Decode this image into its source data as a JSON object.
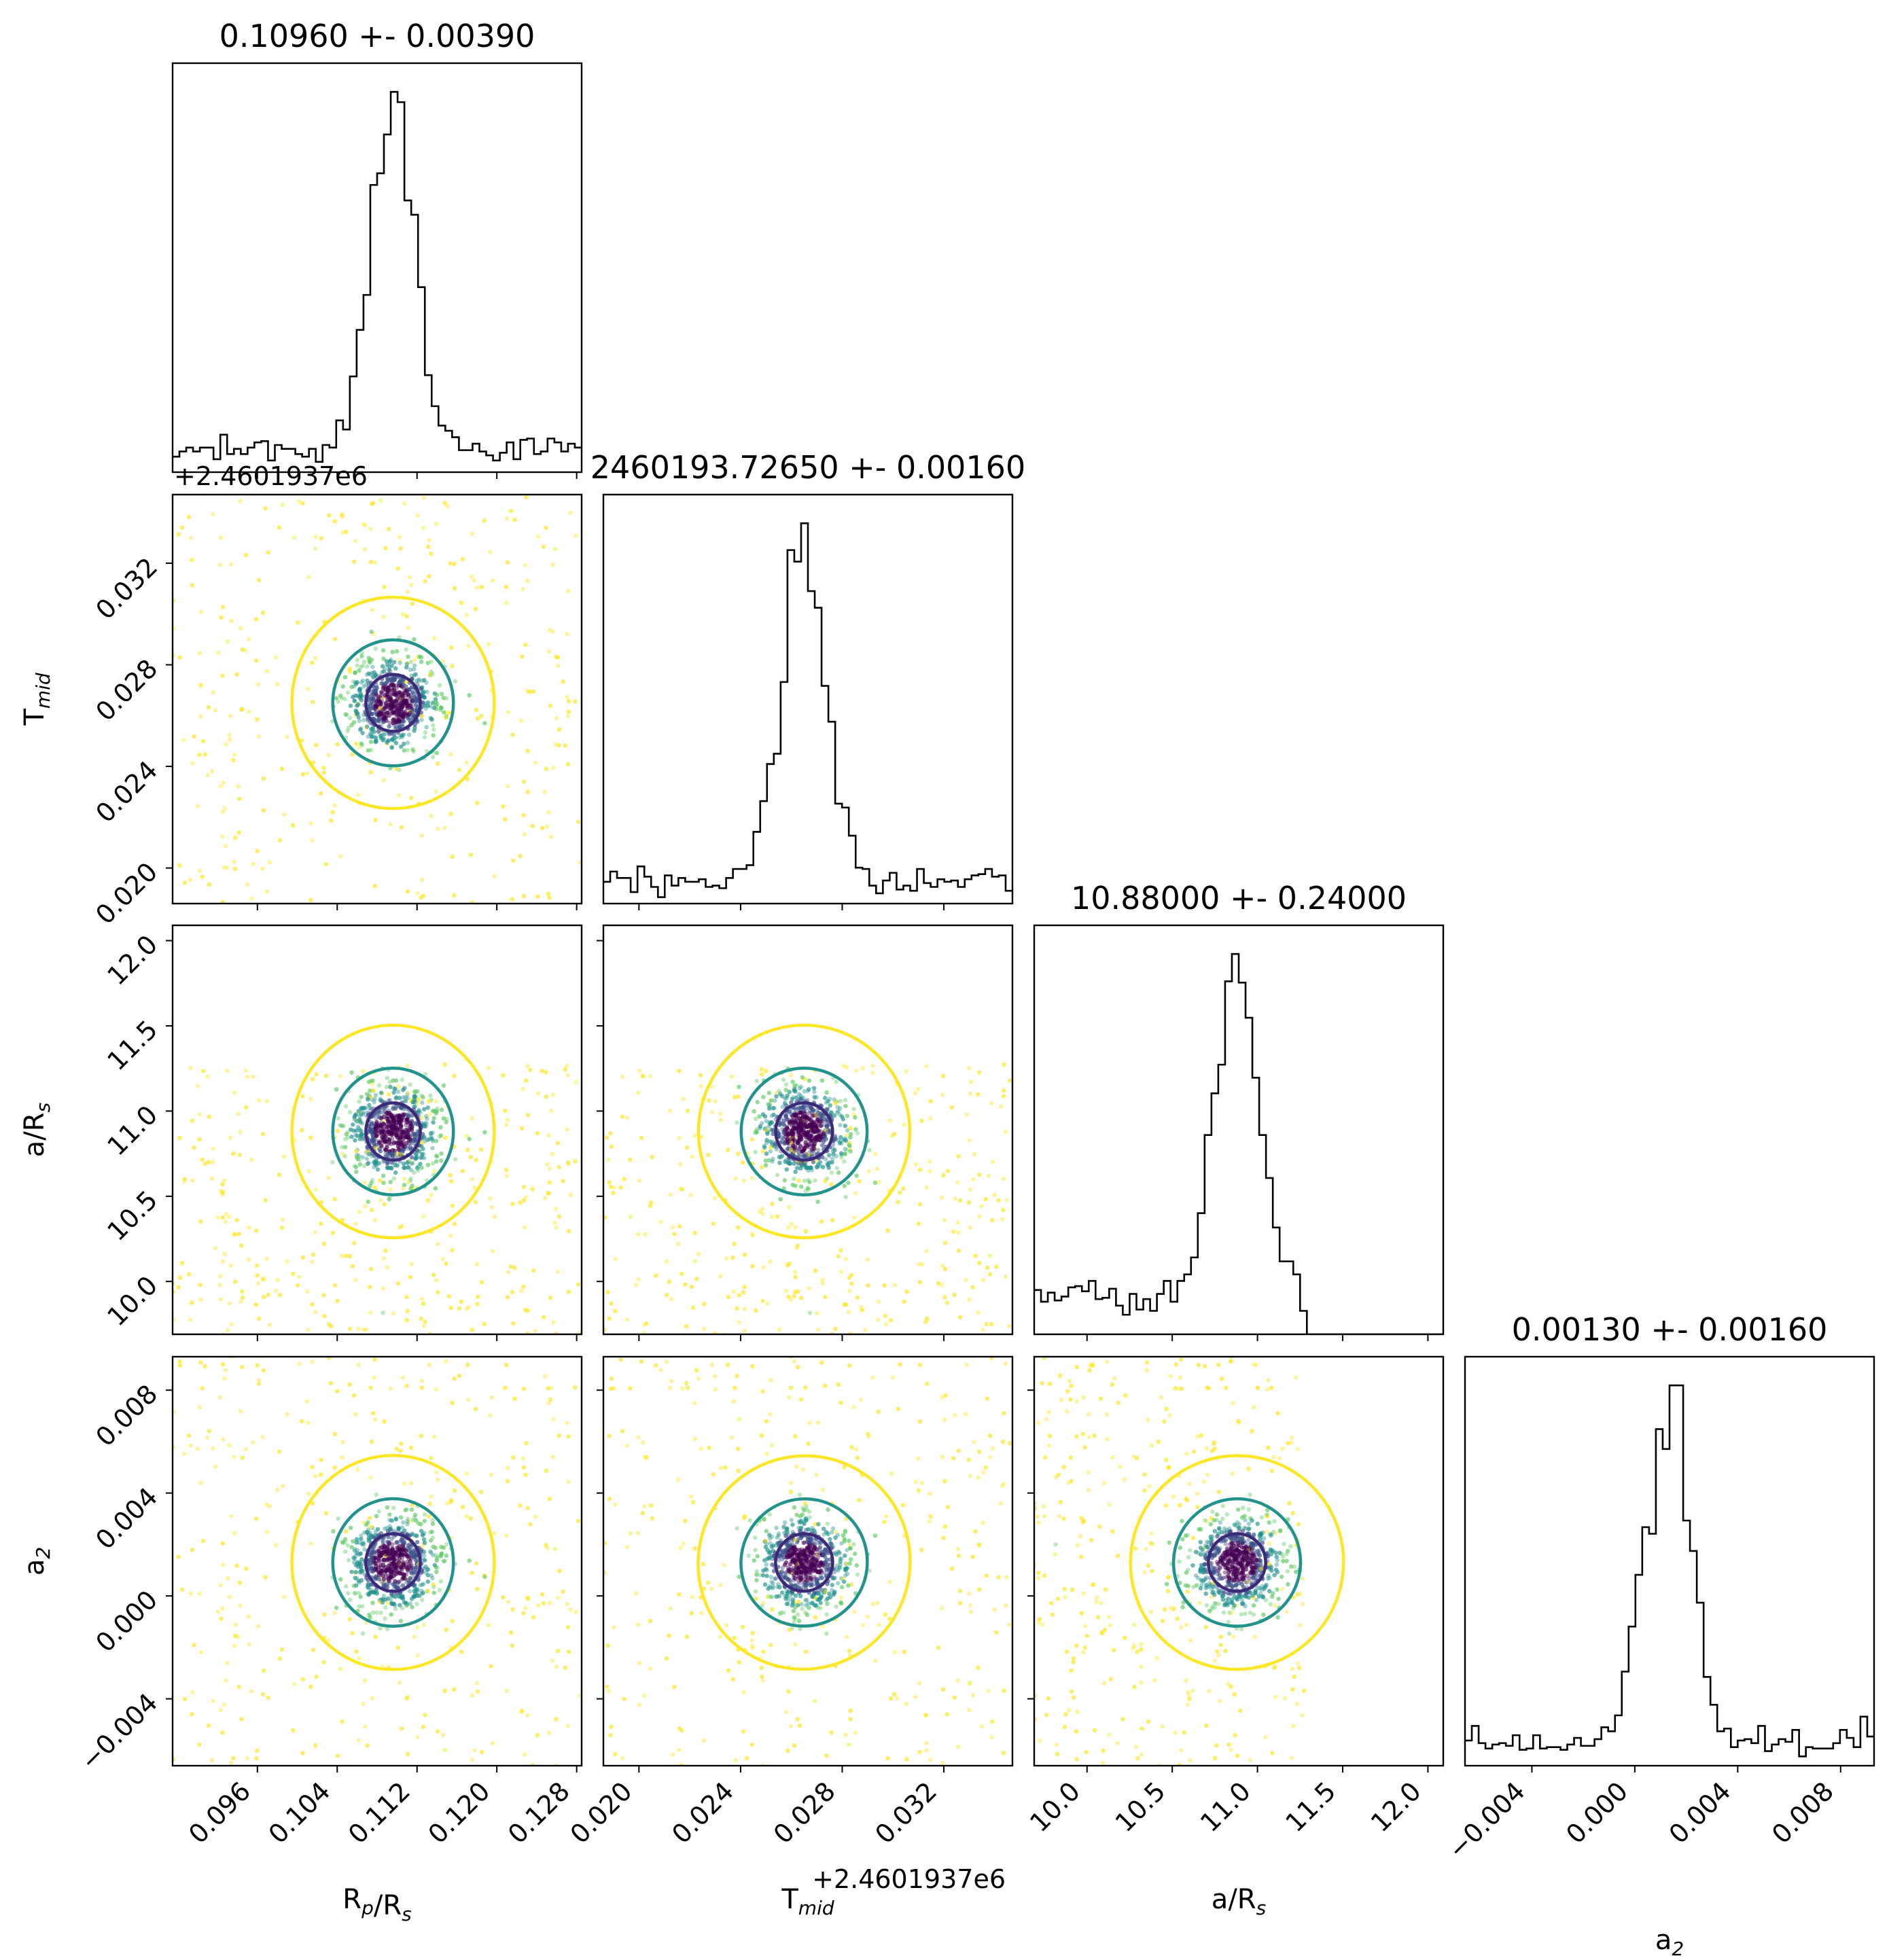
{
  "chart_data": {
    "type": "scatter",
    "subtype": "corner_plot",
    "parameters": [
      {
        "key": "rp",
        "label_main": "R",
        "label_sub1": "p",
        "label_mid": "/R",
        "label_sub2": "s",
        "range": [
          0.0875,
          0.1285
        ],
        "ticks": [
          0.096,
          0.104,
          0.112,
          0.12,
          0.128
        ],
        "tick_labels": [
          "0.096",
          "0.104",
          "0.112",
          "0.120",
          "0.128"
        ],
        "median": 0.1096,
        "sigma": 0.0039,
        "title": "0.10960 +- 0.00390",
        "offset_text": ""
      },
      {
        "key": "tmid",
        "label_main": "T",
        "label_sub1": "mid",
        "label_mid": "",
        "label_sub2": "",
        "range": [
          0.0186,
          0.0347
        ],
        "ticks": [
          0.02,
          0.024,
          0.028,
          0.032
        ],
        "tick_labels": [
          "0.020",
          "0.024",
          "0.028",
          "0.032"
        ],
        "median": 0.0265,
        "sigma": 0.0016,
        "title": "2460193.72650 +- 0.00160",
        "offset_text": "+2.4601937e6"
      },
      {
        "key": "ars",
        "label_main": "a",
        "label_sub1": "",
        "label_mid": "/R",
        "label_sub2": "s",
        "range": [
          9.69,
          12.09
        ],
        "ticks": [
          10.0,
          10.5,
          11.0,
          11.5,
          12.0
        ],
        "tick_labels": [
          "10.0",
          "10.5",
          "11.0",
          "11.5",
          "12.0"
        ],
        "median": 10.88,
        "sigma": 0.24,
        "upper_bound": 11.28,
        "title": "10.88000 +- 0.24000",
        "offset_text": ""
      },
      {
        "key": "a2",
        "label_main": "a",
        "label_sub1": "2",
        "label_mid": "",
        "label_sub2": "",
        "range": [
          -0.0066,
          0.0093
        ],
        "ticks": [
          -0.004,
          0.0,
          0.004,
          0.008
        ],
        "tick_labels": [
          "−0.004",
          "0.000",
          "0.004",
          "0.008"
        ],
        "median": 0.0013,
        "sigma": 0.0016,
        "title": "0.00130 +- 0.00160",
        "offset_text": ""
      }
    ],
    "contour_colors": [
      "#3b2a78",
      "#22928c",
      "#fde725"
    ],
    "point_colors": [
      "#440154",
      "#3b528b",
      "#21918c",
      "#5ec962",
      "#fde725"
    ],
    "histogram_bins": 60,
    "grid": false,
    "legend": "none"
  }
}
